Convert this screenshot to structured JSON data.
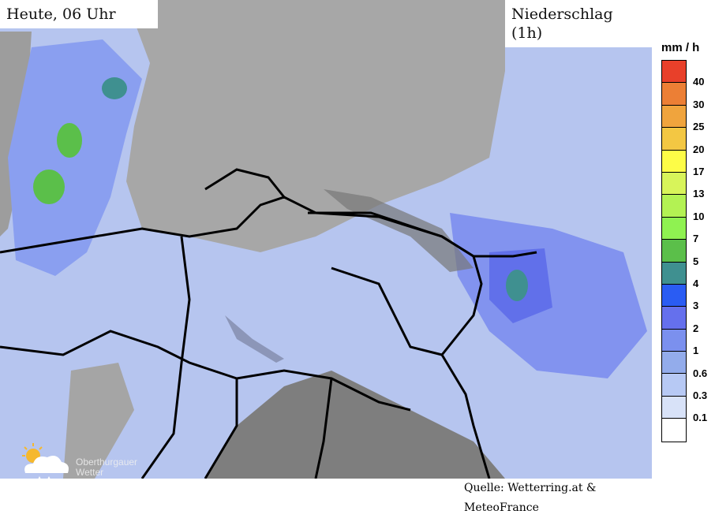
{
  "header": {
    "time_label": "Heute, 06 Uhr",
    "layer_label": "Niederschlag (1h)"
  },
  "legend": {
    "unit": "mm / h",
    "colors": [
      "#e8402a",
      "#ec7f35",
      "#f0a43d",
      "#f3c743",
      "#fdfc47",
      "#d8f45a",
      "#b3f253",
      "#8ff251",
      "#5bbf4a",
      "#3f9090",
      "#2a5cf3",
      "#6570ed",
      "#7b90ee",
      "#93aceb",
      "#b7c9f4",
      "#d8e2f8",
      "#ffffff"
    ],
    "labels": [
      "40",
      "30",
      "25",
      "20",
      "17",
      "13",
      "10",
      "7",
      "5",
      "4",
      "3",
      "2",
      "1",
      "0.6",
      "0.3",
      "0.1"
    ]
  },
  "source": "Quelle: Wetterring.at & MeteoFrance",
  "logo": {
    "text_line1": "Oberthurgauer",
    "text_line2": "Wetter"
  }
}
